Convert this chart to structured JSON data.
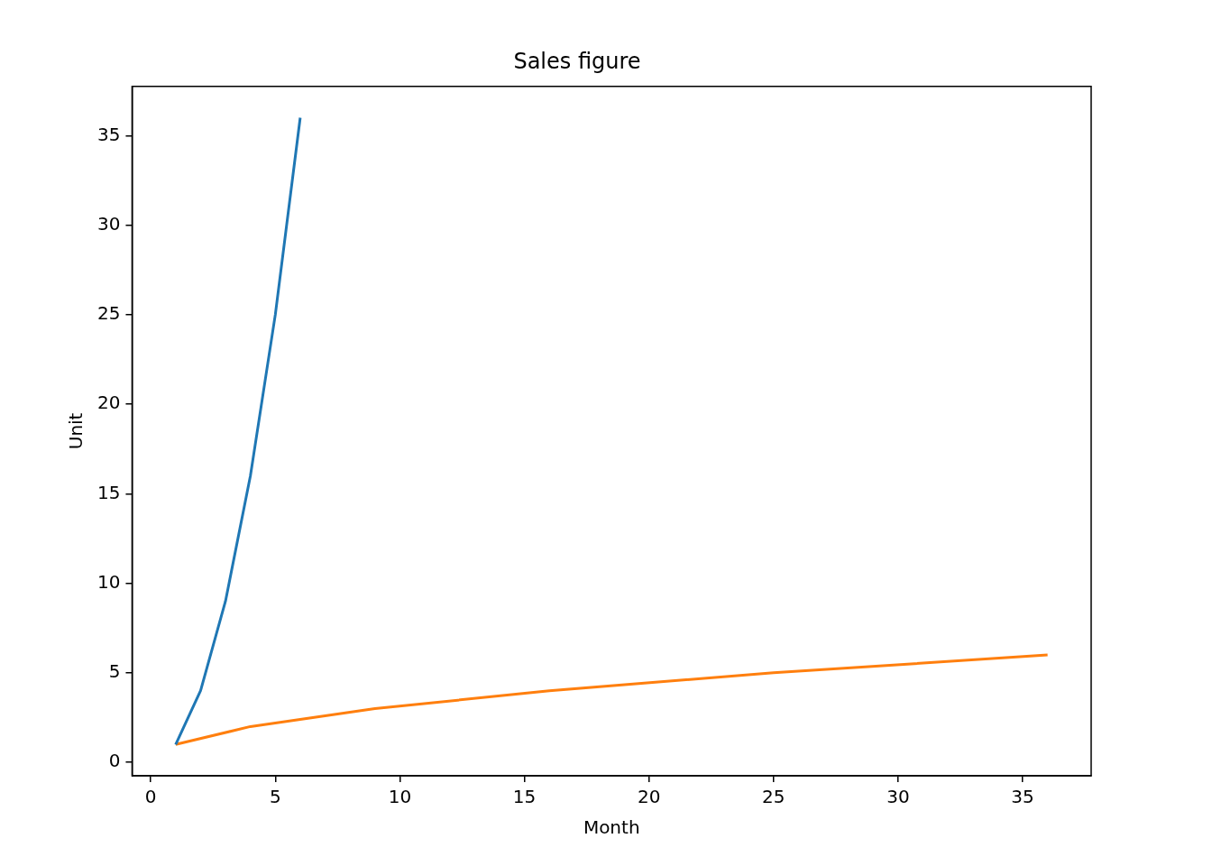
{
  "chart_data": {
    "type": "line",
    "title": "Sales figure",
    "xlabel": "Month",
    "ylabel": "Unit",
    "xlim": [
      -0.75,
      37.75
    ],
    "xticks": [
      0,
      5,
      10,
      15,
      20,
      25,
      30,
      35
    ],
    "ylim": [
      -0.75,
      37.75
    ],
    "yticks": [
      0,
      5,
      10,
      15,
      20,
      25,
      30,
      35
    ],
    "grid": false,
    "legend": false,
    "marker": "none",
    "line_style": "solid",
    "series": [
      {
        "color": "#1f77b4",
        "x": [
          1,
          2,
          3,
          4,
          5,
          6
        ],
        "values": [
          1,
          4,
          9,
          16,
          25,
          36
        ]
      },
      {
        "color": "#ff7f0e",
        "x": [
          1,
          4,
          9,
          16,
          25,
          36
        ],
        "values": [
          1,
          2,
          3,
          4,
          5,
          6
        ]
      }
    ]
  }
}
